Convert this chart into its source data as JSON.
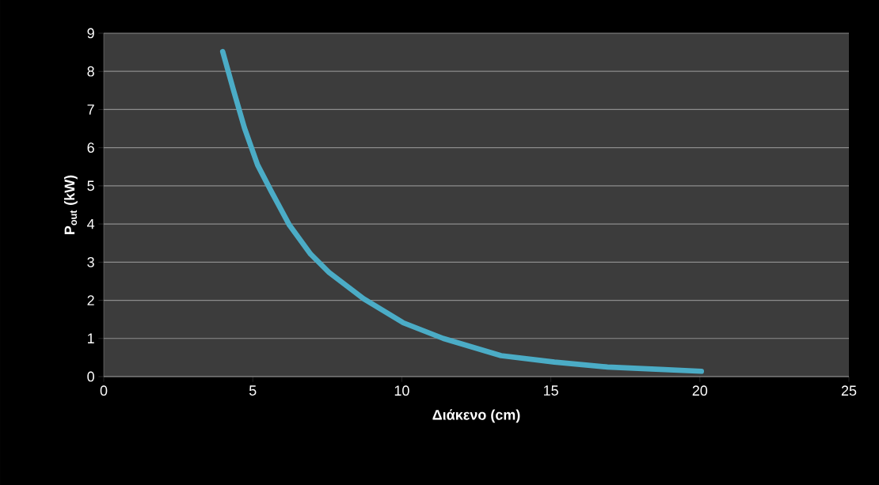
{
  "chart_data": {
    "type": "line",
    "xlabel": "Διάκενο (cm)",
    "ylabel": "P$_{out}$ (kW)",
    "x": [
      3.99,
      4.36,
      4.72,
      5.16,
      5.61,
      6.23,
      6.94,
      7.56,
      8.72,
      10.05,
      11.39,
      13.33,
      15.12,
      16.9,
      18.67,
      20.05
    ],
    "series": [
      {
        "color": "#4bacc6",
        "values": [
          8.52,
          7.49,
          6.52,
          5.55,
          4.87,
          3.97,
          3.21,
          2.73,
          2.04,
          1.41,
          1.0,
          0.55,
          0.38,
          0.25,
          0.19,
          0.14
        ]
      }
    ],
    "xlim": [
      0,
      25
    ],
    "ylim": [
      0,
      9
    ],
    "xticks": [
      0,
      5,
      10,
      15,
      20,
      25
    ],
    "yticks": [
      0,
      1,
      2,
      3,
      4,
      5,
      6,
      7,
      8,
      9
    ],
    "grid": "y",
    "marker": "none",
    "line_style": "solid",
    "legend": false
  }
}
